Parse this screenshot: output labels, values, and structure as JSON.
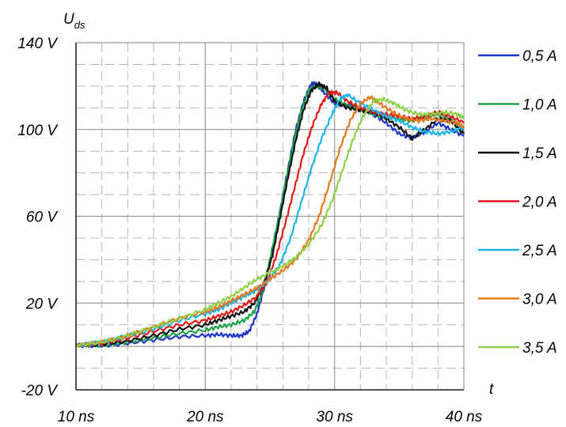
{
  "chart_data": {
    "type": "line",
    "title": "",
    "ylabel_main": "U",
    "ylabel_sub": "ds",
    "xlabel": "t",
    "xlim": [
      10,
      40
    ],
    "ylim": [
      -20,
      140
    ],
    "x_major_step": 10,
    "x_minor_step": 2,
    "y_major_step": 40,
    "y_minor_step": 10,
    "x_tick_values": [
      10,
      20,
      30,
      40
    ],
    "x_tick_labels": [
      "10 ns",
      "20 ns",
      "30 ns",
      "40 ns"
    ],
    "y_tick_values": [
      -20,
      20,
      60,
      100,
      140
    ],
    "y_tick_labels": [
      "-20 V",
      "20 V",
      "60 V",
      "100 V",
      "140 V"
    ],
    "grid": true,
    "legend_position": "right",
    "series": [
      {
        "name": "0,5 A",
        "color": "#1f35c8",
        "x": [
          10,
          12,
          14,
          16,
          18,
          20,
          21,
          22,
          22.8,
          23.4,
          24,
          24.6,
          25.2,
          25.8,
          26.4,
          27,
          27.6,
          28.2,
          28.6,
          29.2,
          30,
          31,
          32,
          33,
          34,
          35,
          36,
          37,
          38,
          39,
          40
        ],
        "y": [
          0.5,
          0.3,
          1.5,
          3,
          4.5,
          5,
          5.5,
          5,
          5,
          7,
          15,
          28,
          45,
          63,
          82,
          100,
          113,
          121,
          121,
          117,
          112,
          111,
          110,
          107,
          103,
          98,
          96,
          99,
          103,
          100,
          97
        ]
      },
      {
        "name": "1,0 A",
        "color": "#1fa34a",
        "x": [
          10,
          12,
          14,
          16,
          18,
          20,
          21,
          22,
          23,
          23.8,
          24.4,
          25,
          25.6,
          26.2,
          26.8,
          27.4,
          28,
          28.6,
          29.2,
          30,
          31,
          32,
          33,
          34,
          35,
          36,
          37,
          38,
          39,
          40
        ],
        "y": [
          0.5,
          0.5,
          2,
          4,
          6,
          7.5,
          9,
          10,
          12,
          16,
          25,
          40,
          57,
          75,
          93,
          108,
          118,
          120,
          119,
          114,
          111,
          109,
          107,
          106,
          105,
          104,
          106,
          107,
          105,
          100
        ]
      },
      {
        "name": "1,5 A",
        "color": "#111111",
        "x": [
          10,
          12,
          14,
          16,
          18,
          20,
          21,
          22,
          23,
          23.8,
          24.5,
          25.2,
          25.8,
          26.4,
          27,
          27.6,
          28.2,
          28.8,
          29.4,
          30,
          31,
          32,
          33,
          34,
          35,
          36,
          37,
          38,
          39,
          40
        ],
        "y": [
          0.5,
          1,
          2.5,
          5,
          8,
          10,
          12,
          14,
          16,
          20,
          28,
          42,
          60,
          78,
          95,
          109,
          118,
          121,
          119,
          113,
          110,
          109,
          108,
          105,
          101,
          96,
          100,
          105,
          104,
          98
        ]
      },
      {
        "name": "2,0 A",
        "color": "#e01818",
        "x": [
          10,
          12,
          14,
          16,
          18,
          20,
          21,
          22,
          23,
          24,
          24.8,
          25.5,
          26.2,
          26.9,
          27.6,
          28.3,
          29,
          29.6,
          30.2,
          31,
          32,
          33,
          34,
          35,
          36,
          37,
          38,
          39,
          40
        ],
        "y": [
          0.5,
          1.5,
          4,
          7,
          10,
          12,
          14,
          16,
          19,
          23,
          30,
          42,
          57,
          73,
          89,
          102,
          112,
          117,
          117,
          113,
          110,
          108,
          107,
          106,
          105,
          106,
          108,
          106,
          103
        ]
      },
      {
        "name": "2,5 A",
        "color": "#1cb4e6",
        "x": [
          10,
          12,
          14,
          16,
          18,
          20,
          21,
          22,
          23,
          24,
          25,
          25.8,
          26.6,
          27.4,
          28.2,
          29,
          29.8,
          30.4,
          31,
          32,
          33,
          34,
          35,
          36,
          37,
          38,
          39,
          40
        ],
        "y": [
          0.5,
          2,
          5,
          8,
          12,
          15,
          17,
          20,
          23,
          26,
          31,
          38,
          50,
          66,
          82,
          96,
          107,
          114,
          116,
          112,
          109,
          106,
          104,
          101,
          99,
          98,
          99,
          101
        ]
      },
      {
        "name": "3,0 A",
        "color": "#e6781e",
        "x": [
          10,
          12,
          14,
          16,
          18,
          20,
          21,
          22,
          23,
          24,
          25,
          26,
          27,
          28,
          28.8,
          29.6,
          30.4,
          31.2,
          32,
          32.8,
          33.5,
          34.5,
          35.5,
          36.5,
          37.5,
          38.5,
          39.5,
          40
        ],
        "y": [
          0.5,
          2,
          5,
          9,
          13,
          16,
          18,
          21,
          24,
          27,
          31,
          35,
          40,
          49,
          60,
          75,
          91,
          104,
          112,
          115,
          112,
          108,
          105,
          104,
          105,
          104,
          103,
          101
        ]
      },
      {
        "name": "3,5 A",
        "color": "#8ed048",
        "x": [
          10,
          12,
          14,
          16,
          18,
          20,
          21,
          22,
          23,
          24,
          25,
          26,
          27,
          28,
          29,
          29.8,
          30.6,
          31.4,
          32.2,
          33,
          33.8,
          34.6,
          35.5,
          36.5,
          37.5,
          38.5,
          39.5,
          40
        ],
        "y": [
          0.5,
          2,
          5,
          9,
          13,
          17,
          20,
          23,
          27,
          31,
          34,
          37,
          41,
          47,
          56,
          67,
          81,
          95,
          106,
          113,
          114,
          112,
          109,
          107,
          107,
          108,
          107,
          105
        ]
      }
    ]
  }
}
